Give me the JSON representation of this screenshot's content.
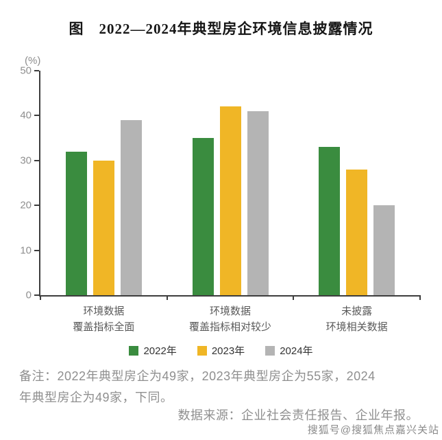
{
  "title": "图　2022—2024年典型房企环境信息披露情况",
  "chart_data": {
    "type": "bar",
    "title": "2022—2024年典型房企环境信息披露情况",
    "unit_label": "(%)",
    "categories": [
      "环境数据\n覆盖指标全面",
      "环境数据\n覆盖指标相对较少",
      "未披露\n环境相关数据"
    ],
    "series": [
      {
        "name": "2022年",
        "color": "#3a8c3f",
        "values": [
          32,
          35,
          33
        ]
      },
      {
        "name": "2023年",
        "color": "#f0b626",
        "values": [
          30,
          42,
          28
        ]
      },
      {
        "name": "2024年",
        "color": "#b4b4b4",
        "values": [
          39,
          41,
          20
        ]
      }
    ],
    "ylim": [
      0,
      50
    ],
    "yticks": [
      0,
      10,
      20,
      30,
      40,
      50
    ],
    "grid": false,
    "legend_position": "bottom"
  },
  "notes": "备注：2022年典型房企为49家，2023年典型房企为55家，2024\n年典型房企为49家，下同。",
  "source": "数据来源：企业社会责任报告、企业年报。",
  "watermark": "搜狐号@搜狐焦点嘉兴关站"
}
